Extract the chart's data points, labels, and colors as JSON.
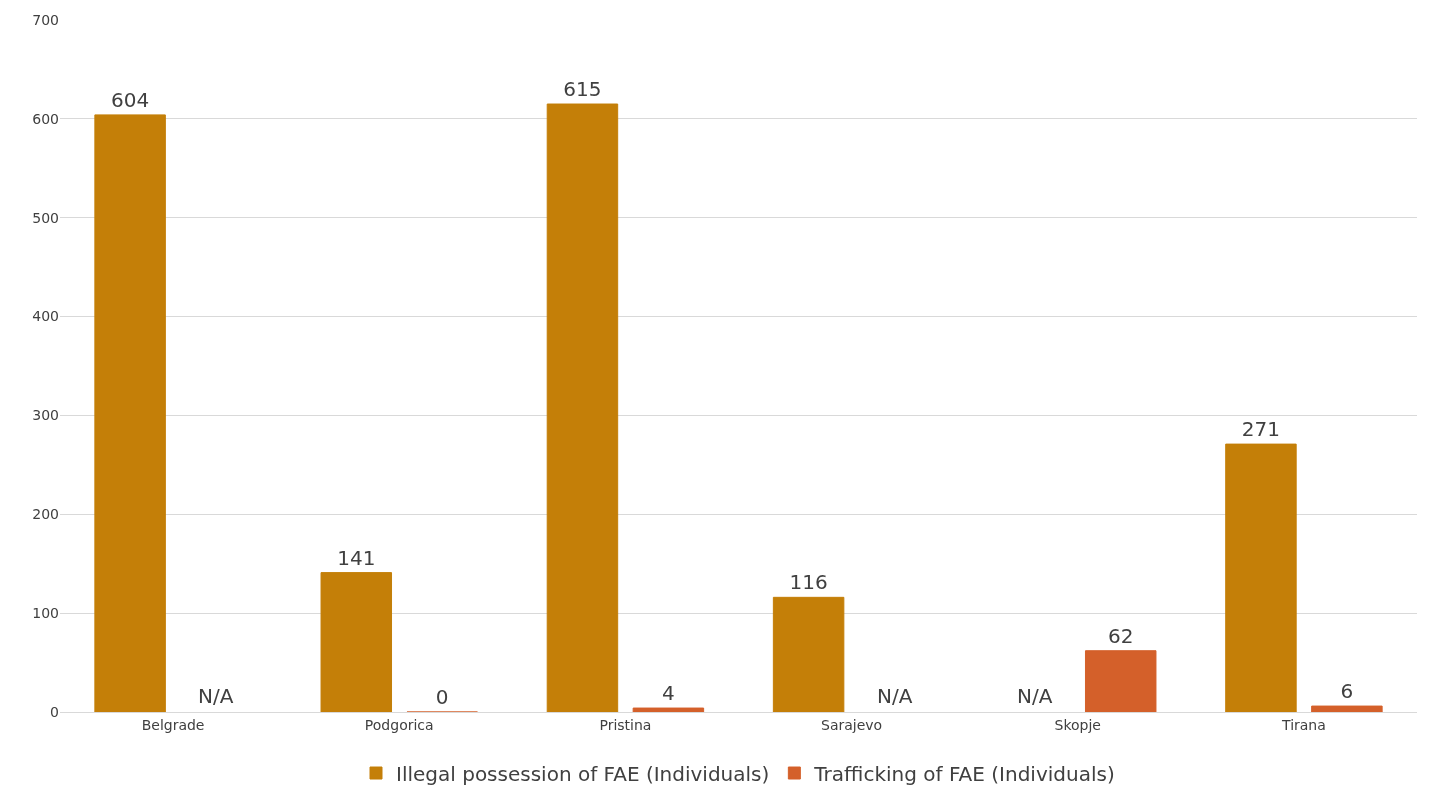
{
  "chart_data": {
    "type": "bar",
    "categories": [
      "Belgrade",
      "Podgorica",
      "Pristina",
      "Sarajevo",
      "Skopje",
      "Tirana"
    ],
    "series": [
      {
        "name": "Illegal possession of FAE (Individuals)",
        "color": "#c47f08",
        "values": [
          604,
          141,
          615,
          116,
          null,
          271
        ],
        "value_labels": [
          "604",
          "141",
          "615",
          "116",
          "N/A",
          "271"
        ]
      },
      {
        "name": "Trafficking of FAE (Individuals)",
        "color": "#d4602a",
        "values": [
          null,
          0,
          4,
          null,
          62,
          6
        ],
        "value_labels": [
          "N/A",
          "0",
          "4",
          "N/A",
          "62",
          "6"
        ]
      }
    ],
    "ylim": [
      0,
      700
    ],
    "yticks": [
      0,
      100,
      200,
      300,
      400,
      500,
      600,
      700
    ],
    "grid": "y",
    "legend": "bottom"
  }
}
